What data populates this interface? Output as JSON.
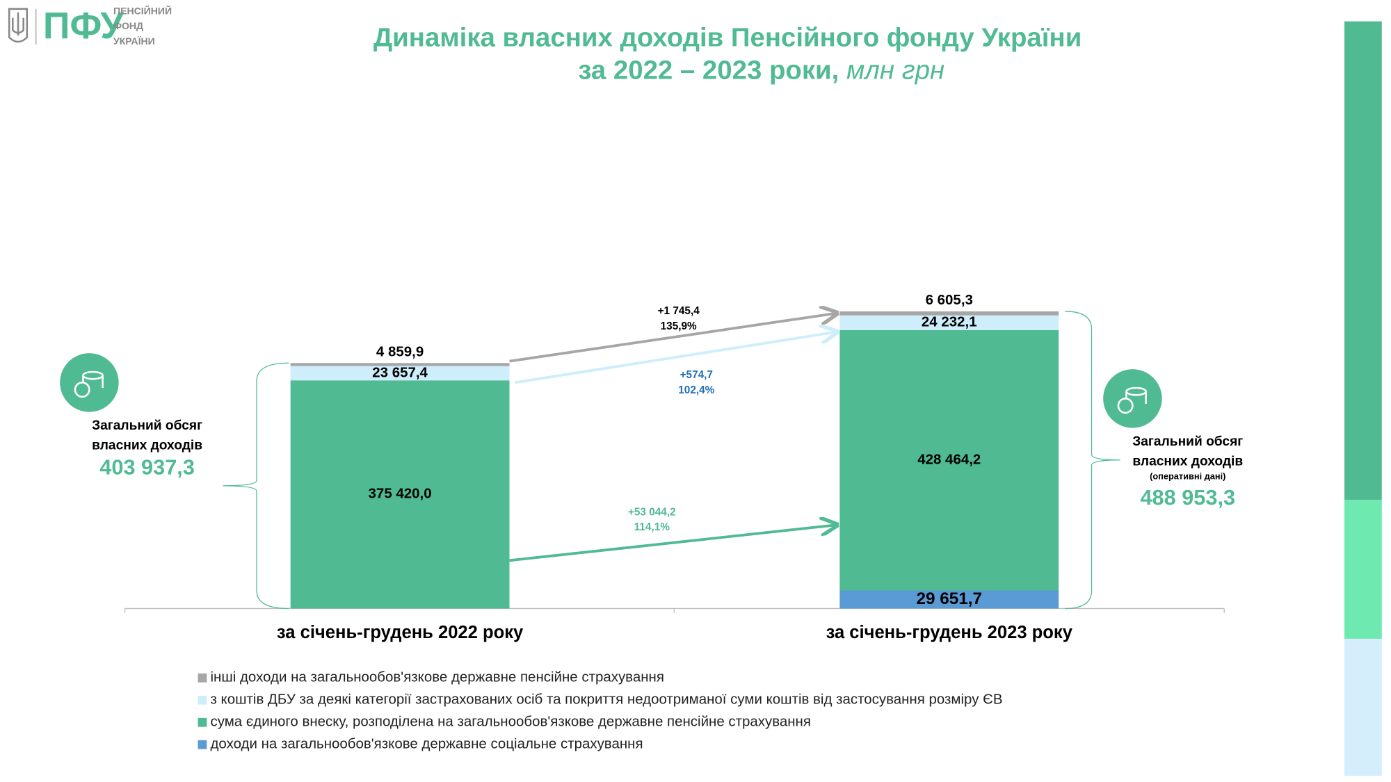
{
  "logo": {
    "abbr": "ПФУ",
    "lines": [
      "ПЕНСІЙНИЙ",
      "ФОНД",
      "УКРАЇНИ"
    ]
  },
  "chart_data": {
    "type": "bar",
    "stacked": true,
    "title": "Динаміка власних доходів Пенсійного фонду України",
    "subtitle": "за 2022 – 2023 роки,",
    "unit": "млн грн",
    "categories": [
      "за січень-грудень 2022 року",
      "за січень-грудень 2023 року"
    ],
    "series": [
      {
        "name": "інші доходи на загальнообов'язкове державне пенсійне страхування",
        "color": "#a6a6a6",
        "values": [
          4859.9,
          6605.3
        ],
        "value_labels": [
          "4 859,9",
          "6 605,3"
        ]
      },
      {
        "name": "з коштів ДБУ за деякі категорії застрахованих осіб та покриття недоотриманої суми коштів від застосування розміру ЄВ",
        "color": "#cdeefa",
        "values": [
          23657.4,
          24232.1
        ],
        "value_labels": [
          "23 657,4",
          "24 232,1"
        ]
      },
      {
        "name": "сума єдиного внеску, розподілена на загальнообов'язкове державне пенсійне страхування",
        "color": "#50ba93",
        "values": [
          375420.0,
          428464.2
        ],
        "value_labels": [
          "375 420,0",
          "428 464,2"
        ]
      },
      {
        "name": "доходи на загальнообов'язкове державне соціальне страхування",
        "color": "#5b9bd5",
        "values": [
          null,
          29651.7
        ],
        "value_labels": [
          null,
          "29 651,7"
        ]
      }
    ],
    "totals": [
      {
        "lines": [
          "Загальний обсяг",
          "власних доходів"
        ],
        "value": 403937.3,
        "label": "403 937,3"
      },
      {
        "lines": [
          "Загальний обсяг",
          "власних доходів"
        ],
        "note": "(оперативні дані)",
        "value": 488953.3,
        "label": "488 953,3"
      }
    ],
    "changes": [
      {
        "value": 1745.4,
        "label": "+1 745,4",
        "percent": 135.9,
        "percent_label": "135,9%",
        "color": "#a6a6a6"
      },
      {
        "value": 574.7,
        "label": "+574,7",
        "percent": 102.4,
        "percent_label": "102,4%",
        "color": "#cdeefa"
      },
      {
        "value": 53044.2,
        "label": "+53 044,2",
        "percent": 114.1,
        "percent_label": "114,1%",
        "color": "#50ba93"
      }
    ]
  }
}
